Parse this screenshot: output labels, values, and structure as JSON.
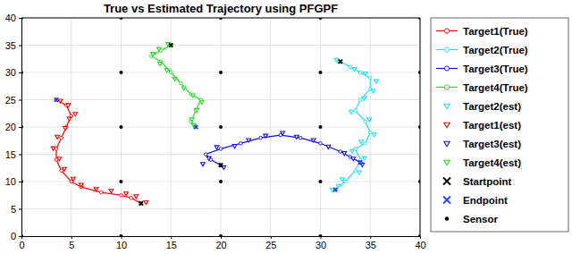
{
  "chart_data": {
    "type": "scatter",
    "title": "True vs Estimated Trajectory using PFGPF",
    "xlim": [
      0,
      40
    ],
    "ylim": [
      0,
      40
    ],
    "xticks": [
      0,
      5,
      10,
      15,
      20,
      25,
      30,
      35,
      40
    ],
    "yticks": [
      0,
      5,
      10,
      15,
      20,
      25,
      30,
      35,
      40
    ],
    "grid": true,
    "legend": "right",
    "series": [
      {
        "name": "Target1(True)",
        "color": "#ff0000",
        "type": "line",
        "marker": "circle",
        "line_style": "solid",
        "x": [
          12,
          11,
          10,
          8,
          6,
          5,
          4,
          3.5,
          3.5,
          4,
          4.5,
          5,
          4.5,
          3.5
        ],
        "values": [
          6,
          7,
          7.5,
          8,
          9,
          10,
          12,
          14,
          16,
          18,
          20,
          22,
          24,
          25
        ]
      },
      {
        "name": "Target2(True)",
        "color": "#22e0f0",
        "type": "line",
        "marker": "circle",
        "line_style": "solid",
        "x": [
          32,
          33,
          34,
          35,
          35,
          34,
          33.5,
          34.5,
          35,
          34.5,
          33.5,
          34,
          33.5,
          32.5,
          31.5
        ],
        "values": [
          32,
          31,
          30,
          29,
          27,
          25,
          23,
          21,
          19,
          17,
          16,
          14,
          12,
          10,
          8.5
        ]
      },
      {
        "name": "Target3(True)",
        "color": "#1010dd",
        "type": "line",
        "marker": "circle",
        "line_style": "solid",
        "x": [
          20,
          19,
          18.5,
          20,
          22,
          24,
          26,
          28,
          30,
          32,
          33,
          34
        ],
        "values": [
          13,
          14,
          15,
          16,
          17,
          18,
          18.5,
          18,
          17,
          15.5,
          14.5,
          13.5
        ]
      },
      {
        "name": "Target4(True)",
        "color": "#22dd22",
        "type": "line",
        "marker": "circle",
        "line_style": "solid",
        "x": [
          15,
          14,
          13,
          14,
          15,
          16,
          17,
          18,
          17.5,
          17,
          17.5
        ],
        "values": [
          35,
          34,
          33,
          32,
          30,
          28,
          26,
          25,
          23,
          21,
          20
        ]
      },
      {
        "name": "Target2(est)",
        "color": "#22e0f0",
        "type": "scatter",
        "marker": "triangle-down",
        "line_style": "none",
        "x": [
          31.6,
          33.4,
          34.5,
          35.6,
          35.3,
          34.4,
          33.1,
          34.9,
          35.4,
          34.1,
          33.2,
          34.4,
          33.9,
          32.2,
          31.8,
          31.2
        ],
        "values": [
          32.3,
          30.6,
          29.8,
          28.4,
          26.6,
          25.3,
          22.8,
          21.4,
          18.6,
          17.3,
          15.6,
          14.3,
          11.7,
          10.4,
          9.2,
          8.5
        ]
      },
      {
        "name": "Target1(est)",
        "color": "#ff0000",
        "type": "scatter",
        "marker": "triangle-down",
        "line_style": "none",
        "x": [
          12.5,
          11.5,
          10.5,
          9,
          7.5,
          6,
          5.2,
          4.3,
          3.8,
          3.2,
          3.6,
          4.4,
          4.8,
          5.4,
          4.7,
          3.9
        ],
        "values": [
          6.2,
          7.3,
          7.8,
          8.3,
          8.6,
          9.4,
          10.5,
          12.3,
          14.2,
          16.1,
          18.2,
          19.8,
          21.5,
          22.4,
          24,
          24.8
        ]
      },
      {
        "name": "Target3(est)",
        "color": "#1010dd",
        "type": "scatter",
        "marker": "triangle-down",
        "line_style": "none",
        "x": [
          20.3,
          18.8,
          18.2,
          19.6,
          21.4,
          22.8,
          24.5,
          26.2,
          27.6,
          29.3,
          30.8,
          32.4,
          33.3,
          34.2
        ],
        "values": [
          12.6,
          14.3,
          13.2,
          16.3,
          16.5,
          17.6,
          18.4,
          18.9,
          18.2,
          17.6,
          16.4,
          15.2,
          14.2,
          13.1
        ]
      },
      {
        "name": "Target4(est)",
        "color": "#22dd22",
        "type": "scatter",
        "marker": "triangle-down",
        "line_style": "none",
        "x": [
          14.7,
          13.8,
          13.2,
          13.9,
          14.6,
          15.4,
          16.3,
          17.2,
          18.1,
          17.6,
          17.1,
          17.3
        ],
        "values": [
          35.2,
          34.3,
          33.4,
          31.6,
          30.4,
          28.8,
          27.1,
          25.8,
          24.6,
          23.1,
          21.4,
          20.3
        ]
      },
      {
        "name": "Startpoint",
        "color": "#000000",
        "type": "scatter",
        "marker": "x",
        "line_style": "none",
        "x": [
          12,
          32,
          20,
          15
        ],
        "values": [
          6,
          32,
          13,
          35
        ]
      },
      {
        "name": "Endpoint",
        "color": "#2244ff",
        "type": "scatter",
        "marker": "x",
        "line_style": "none",
        "x": [
          3.5,
          31.5,
          34,
          17.5
        ],
        "values": [
          25,
          8.5,
          13.5,
          20
        ]
      },
      {
        "name": "Sensor",
        "color": "#000000",
        "type": "scatter",
        "marker": "dot",
        "line_style": "none",
        "x": [
          0,
          0,
          0,
          0,
          0,
          10,
          10,
          10,
          10,
          10,
          20,
          20,
          20,
          20,
          20,
          30,
          30,
          30,
          30,
          30,
          40,
          40,
          40,
          40,
          40
        ],
        "values": [
          0,
          10,
          20,
          30,
          40,
          0,
          10,
          20,
          30,
          40,
          0,
          10,
          20,
          30,
          40,
          0,
          10,
          20,
          30,
          40,
          0,
          10,
          20,
          30,
          40
        ]
      }
    ]
  }
}
